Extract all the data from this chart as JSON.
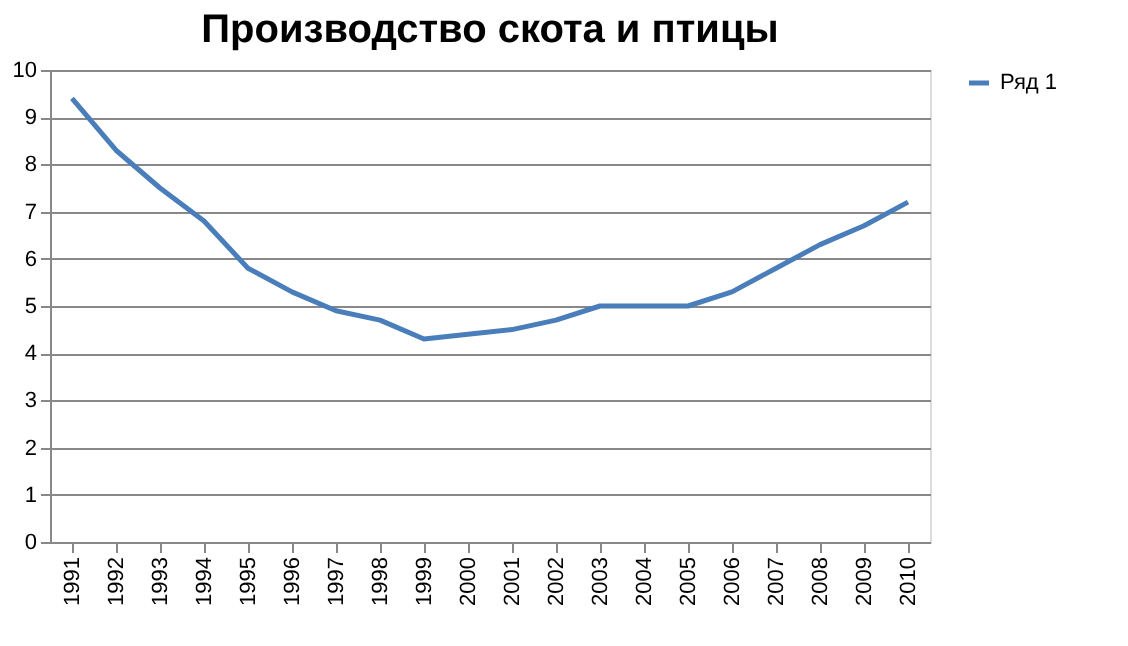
{
  "chart_data": {
    "type": "line",
    "title": "Производство скота и птицы",
    "categories": [
      "1991",
      "1992",
      "1993",
      "1994",
      "1995",
      "1996",
      "1997",
      "1998",
      "1999",
      "2000",
      "2001",
      "2002",
      "2003",
      "2004",
      "2005",
      "2006",
      "2007",
      "2008",
      "2009",
      "2010"
    ],
    "series": [
      {
        "name": "Ряд 1",
        "color": "#4a7ebb",
        "values": [
          9.4,
          8.3,
          7.5,
          6.8,
          5.8,
          5.3,
          4.9,
          4.7,
          4.3,
          4.4,
          4.5,
          4.7,
          5.0,
          5.0,
          5.0,
          5.3,
          5.8,
          6.3,
          6.7,
          7.2
        ]
      }
    ],
    "ylim": [
      0,
      10
    ],
    "yticks": [
      0,
      1,
      2,
      3,
      4,
      5,
      6,
      7,
      8,
      9,
      10
    ],
    "grid": "y",
    "legend": "right",
    "marker": "none",
    "line_style": "solid"
  }
}
